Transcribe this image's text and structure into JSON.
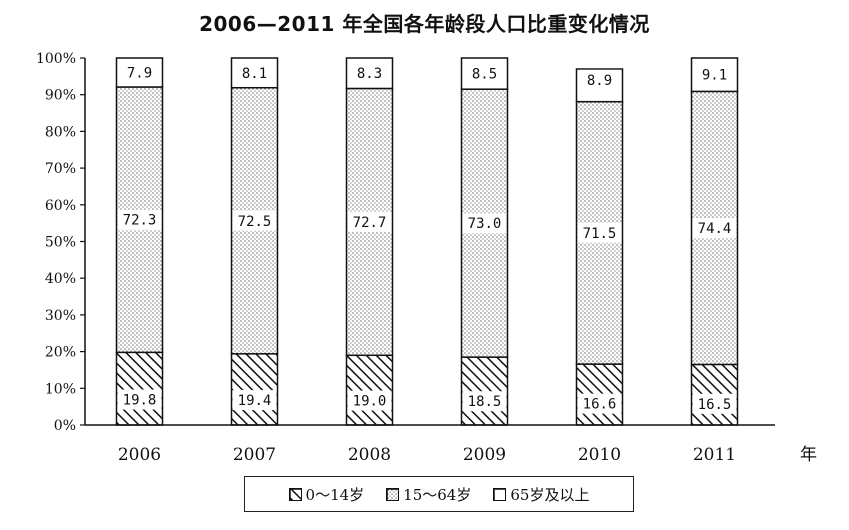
{
  "chart_data": {
    "type": "bar",
    "stacked": true,
    "title": "2006—2011 年全国各年龄段人口比重变化情况",
    "x_unit": "年",
    "categories": [
      "2006",
      "2007",
      "2008",
      "2009",
      "2010",
      "2011"
    ],
    "y_ticks": [
      "0%",
      "10%",
      "20%",
      "30%",
      "40%",
      "50%",
      "60%",
      "70%",
      "80%",
      "90%",
      "100%"
    ],
    "ylim": [
      0,
      100
    ],
    "grid": false,
    "legend_position": "bottom",
    "series": [
      {
        "name": "0～14岁",
        "pattern": "hatch",
        "values": [
          19.8,
          19.4,
          19.0,
          18.5,
          16.6,
          16.5
        ],
        "labels": [
          "19.8",
          "19.4",
          "19.0",
          "18.5",
          "16.6",
          "16.5"
        ]
      },
      {
        "name": "15～64岁",
        "pattern": "dots",
        "values": [
          72.3,
          72.5,
          72.7,
          73.0,
          71.5,
          74.4
        ],
        "labels": [
          "72.3",
          "72.5",
          "72.7",
          "73.0",
          "71.5",
          "74.4"
        ]
      },
      {
        "name": "65岁及以上",
        "pattern": "blank",
        "values": [
          7.9,
          8.1,
          8.3,
          8.5,
          8.9,
          9.1
        ],
        "labels": [
          "7.9",
          "8.1",
          "8.3",
          "8.5",
          "8.9",
          "9.1"
        ]
      }
    ],
    "colors": {
      "ink": "#111111",
      "dots": "#888888",
      "fill": "#ffffff"
    }
  }
}
